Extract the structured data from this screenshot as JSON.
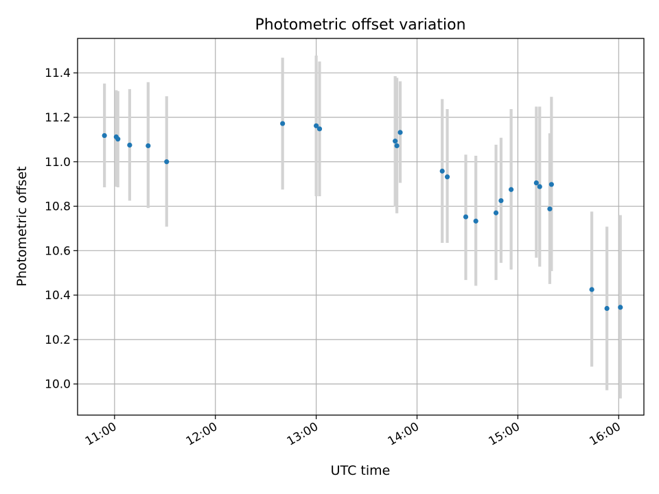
{
  "chart_data": {
    "type": "scatter",
    "title": "Photometric offset variation",
    "xlabel": "UTC time",
    "ylabel": "Photometric offset",
    "xlim": [
      "10:38",
      "16:15"
    ],
    "ylim": [
      9.86,
      11.555
    ],
    "x_ticks": [
      "11:00",
      "12:00",
      "13:00",
      "14:00",
      "15:00",
      "16:00"
    ],
    "y_ticks": [
      10.0,
      10.2,
      10.4,
      10.6,
      10.8,
      11.0,
      11.2,
      11.4
    ],
    "y_tick_labels": [
      "10.0",
      "10.2",
      "10.4",
      "10.6",
      "10.8",
      "11.0",
      "11.2",
      "11.4"
    ],
    "grid": true,
    "marker_color": "#1f77b4",
    "errorbar_color": "#d3d3d3",
    "points": [
      {
        "t": "10:54",
        "y": 11.118,
        "lo": 10.885,
        "hi": 11.352
      },
      {
        "t": "11:01",
        "y": 11.112,
        "lo": 10.888,
        "hi": 11.322
      },
      {
        "t": "11:02",
        "y": 11.102,
        "lo": 10.885,
        "hi": 11.318
      },
      {
        "t": "11:09",
        "y": 11.075,
        "lo": 10.825,
        "hi": 11.327
      },
      {
        "t": "11:20",
        "y": 11.072,
        "lo": 10.792,
        "hi": 11.358
      },
      {
        "t": "11:31",
        "y": 11.0,
        "lo": 10.708,
        "hi": 11.295
      },
      {
        "t": "12:40",
        "y": 11.172,
        "lo": 10.875,
        "hi": 11.468
      },
      {
        "t": "13:00",
        "y": 11.162,
        "lo": 10.845,
        "hi": 11.478
      },
      {
        "t": "13:02",
        "y": 11.148,
        "lo": 10.845,
        "hi": 11.451
      },
      {
        "t": "13:47",
        "y": 11.093,
        "lo": 10.798,
        "hi": 11.385
      },
      {
        "t": "13:48",
        "y": 11.072,
        "lo": 10.768,
        "hi": 11.378
      },
      {
        "t": "13:50",
        "y": 11.132,
        "lo": 10.905,
        "hi": 11.362
      },
      {
        "t": "14:15",
        "y": 10.958,
        "lo": 10.635,
        "hi": 11.282
      },
      {
        "t": "14:18",
        "y": 10.932,
        "lo": 10.635,
        "hi": 11.237
      },
      {
        "t": "14:29",
        "y": 10.752,
        "lo": 10.468,
        "hi": 11.032
      },
      {
        "t": "14:35",
        "y": 10.733,
        "lo": 10.442,
        "hi": 11.027
      },
      {
        "t": "14:47",
        "y": 10.77,
        "lo": 10.468,
        "hi": 11.077
      },
      {
        "t": "14:50",
        "y": 10.825,
        "lo": 10.545,
        "hi": 11.108
      },
      {
        "t": "14:56",
        "y": 10.875,
        "lo": 10.515,
        "hi": 11.237
      },
      {
        "t": "15:11",
        "y": 10.905,
        "lo": 10.568,
        "hi": 11.248
      },
      {
        "t": "15:13",
        "y": 10.888,
        "lo": 10.528,
        "hi": 11.248
      },
      {
        "t": "15:19",
        "y": 10.788,
        "lo": 10.45,
        "hi": 11.128
      },
      {
        "t": "15:20",
        "y": 10.898,
        "lo": 10.508,
        "hi": 11.292
      },
      {
        "t": "15:44",
        "y": 10.425,
        "lo": 10.078,
        "hi": 10.776
      },
      {
        "t": "15:53",
        "y": 10.34,
        "lo": 9.972,
        "hi": 10.708
      },
      {
        "t": "16:01",
        "y": 10.345,
        "lo": 9.935,
        "hi": 10.76
      }
    ]
  }
}
